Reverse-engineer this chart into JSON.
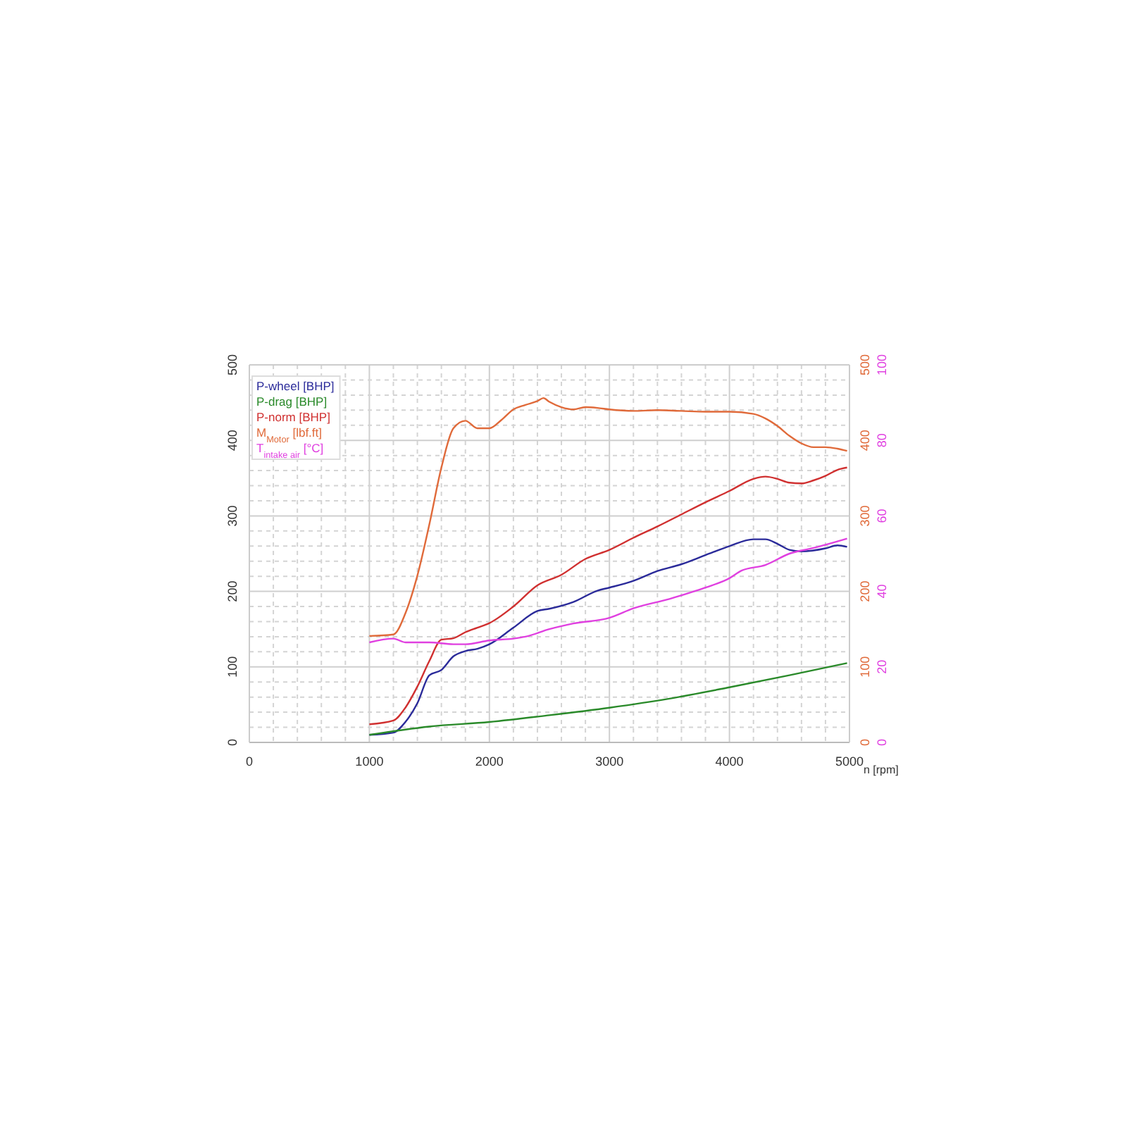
{
  "chart_data": {
    "type": "line",
    "xlabel": "n [rpm]",
    "xlim": [
      0,
      5000
    ],
    "xticks": [
      0,
      1000,
      2000,
      3000,
      4000,
      5000
    ],
    "ylim": [
      0,
      500
    ],
    "yticks": [
      0,
      100,
      200,
      300,
      400,
      500
    ],
    "y2lim": [
      0,
      500
    ],
    "y2ticks": [
      0,
      100,
      200,
      300,
      400,
      500
    ],
    "y3lim": [
      0,
      100
    ],
    "y3ticks": [
      0,
      20,
      40,
      60,
      80,
      100
    ],
    "grid": true,
    "legend": "top left",
    "line_style": "solid",
    "marker": "none",
    "series": [
      {
        "name": "P-wheel [BHP]",
        "color": "#2b2b9a",
        "x": [
          1000,
          1200,
          1300,
          1400,
          1500,
          1600,
          1700,
          1800,
          1900,
          2000,
          2200,
          2400,
          2500,
          2700,
          2900,
          3000,
          3200,
          3400,
          3600,
          3800,
          4000,
          4200,
          4300,
          4400,
          4500,
          4600,
          4800,
          4900,
          4980
        ],
        "values": [
          10,
          13,
          27,
          52,
          89,
          96,
          114,
          121,
          124,
          130,
          152,
          174,
          177,
          186,
          201,
          205,
          214,
          227,
          236,
          248,
          260,
          269,
          269,
          263,
          255,
          253,
          257,
          261,
          259
        ]
      },
      {
        "name": "P-drag [BHP]",
        "color": "#2a8a2a",
        "x": [
          1000,
          1500,
          2000,
          2500,
          3000,
          3500,
          4000,
          4500,
          4980
        ],
        "values": [
          10,
          21,
          27,
          36,
          46,
          58,
          73,
          89,
          105
        ]
      },
      {
        "name": "P-norm [BHP]",
        "color": "#d03030",
        "x": [
          1000,
          1200,
          1300,
          1400,
          1500,
          1600,
          1700,
          1800,
          1900,
          2000,
          2200,
          2400,
          2600,
          2800,
          3000,
          3200,
          3400,
          3600,
          3800,
          4000,
          4200,
          4300,
          4400,
          4500,
          4600,
          4700,
          4800,
          4900,
          4980
        ],
        "values": [
          24,
          29,
          46,
          74,
          108,
          136,
          138,
          146,
          152,
          158,
          180,
          208,
          222,
          243,
          255,
          271,
          286,
          302,
          318,
          333,
          349,
          352,
          349,
          344,
          343,
          347,
          353,
          361,
          364
        ]
      },
      {
        "name": "M$_{Motor}$ [lbf.ft]",
        "color": "#e06a3a",
        "axis": "y2",
        "x": [
          1000,
          1200,
          1300,
          1400,
          1500,
          1600,
          1700,
          1800,
          1900,
          2000,
          2100,
          2200,
          2300,
          2400,
          2450,
          2500,
          2600,
          2700,
          2800,
          2900,
          3000,
          3200,
          3400,
          3600,
          3800,
          4000,
          4200,
          4300,
          4400,
          4500,
          4600,
          4700,
          4800,
          4900,
          4980
        ],
        "values": [
          141,
          143,
          171,
          221,
          289,
          364,
          416,
          426,
          416,
          416,
          427,
          441,
          447,
          452,
          456,
          451,
          444,
          441,
          444,
          443,
          441,
          439,
          440,
          439,
          438,
          438,
          435,
          429,
          419,
          406,
          396,
          391,
          391,
          389,
          386
        ]
      },
      {
        "name": "T$_{intake air}$ [°C]",
        "color": "#e040e0",
        "axis": "y3",
        "x": [
          1000,
          1200,
          1300,
          1500,
          1700,
          1800,
          2000,
          2200,
          2300,
          2500,
          2700,
          3000,
          3200,
          3500,
          3800,
          4000,
          4100,
          4300,
          4500,
          4700,
          4980
        ],
        "values": [
          26.5,
          27.5,
          26.5,
          26.5,
          26,
          26,
          27,
          27.5,
          28,
          30,
          31.5,
          33,
          35.5,
          38,
          41,
          43.5,
          45.5,
          47,
          50,
          51.5,
          54
        ]
      }
    ]
  }
}
